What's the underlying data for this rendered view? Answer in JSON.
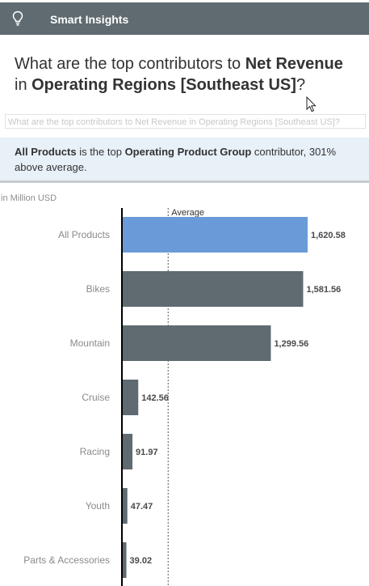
{
  "header": {
    "title": "Smart Insights",
    "icon": "lightbulb-icon",
    "background": "#5f6b70"
  },
  "question": {
    "p1": "What are the top contributors to ",
    "measure": "Net Revenue",
    "p2": " in ",
    "dimension": "Operating Regions",
    "p3": " ",
    "member": "[Southeast US]",
    "p4": "?"
  },
  "tooltip": "What are the top contributors to Net Revenue in Operating Regions [Southeast US]?",
  "summary": {
    "top_member": "All Products",
    "p1": " is the top ",
    "dimension": "Operating Product Group",
    "p2": " contributor, 301% above average."
  },
  "chart_unit": "in Million USD",
  "chart_data": {
    "type": "bar",
    "orientation": "horizontal",
    "categories": [
      "All Products",
      "Bikes",
      "Mountain",
      "Cruise",
      "Racing",
      "Youth",
      "Parts & Accessories"
    ],
    "values": [
      1620.58,
      1581.56,
      1299.56,
      142.56,
      91.97,
      47.47,
      39.02
    ],
    "value_labels": [
      "1,620.58",
      "1,581.56",
      "1,299.56",
      "142.56",
      "91.97",
      "47.47",
      "39.02"
    ],
    "average_label": "Average",
    "average_value": 403.3,
    "highlight_index": 0,
    "highlight_color": "#6a9bd8",
    "bar_color": "#5f6b70",
    "xlim": [
      0,
      1620.58
    ]
  }
}
